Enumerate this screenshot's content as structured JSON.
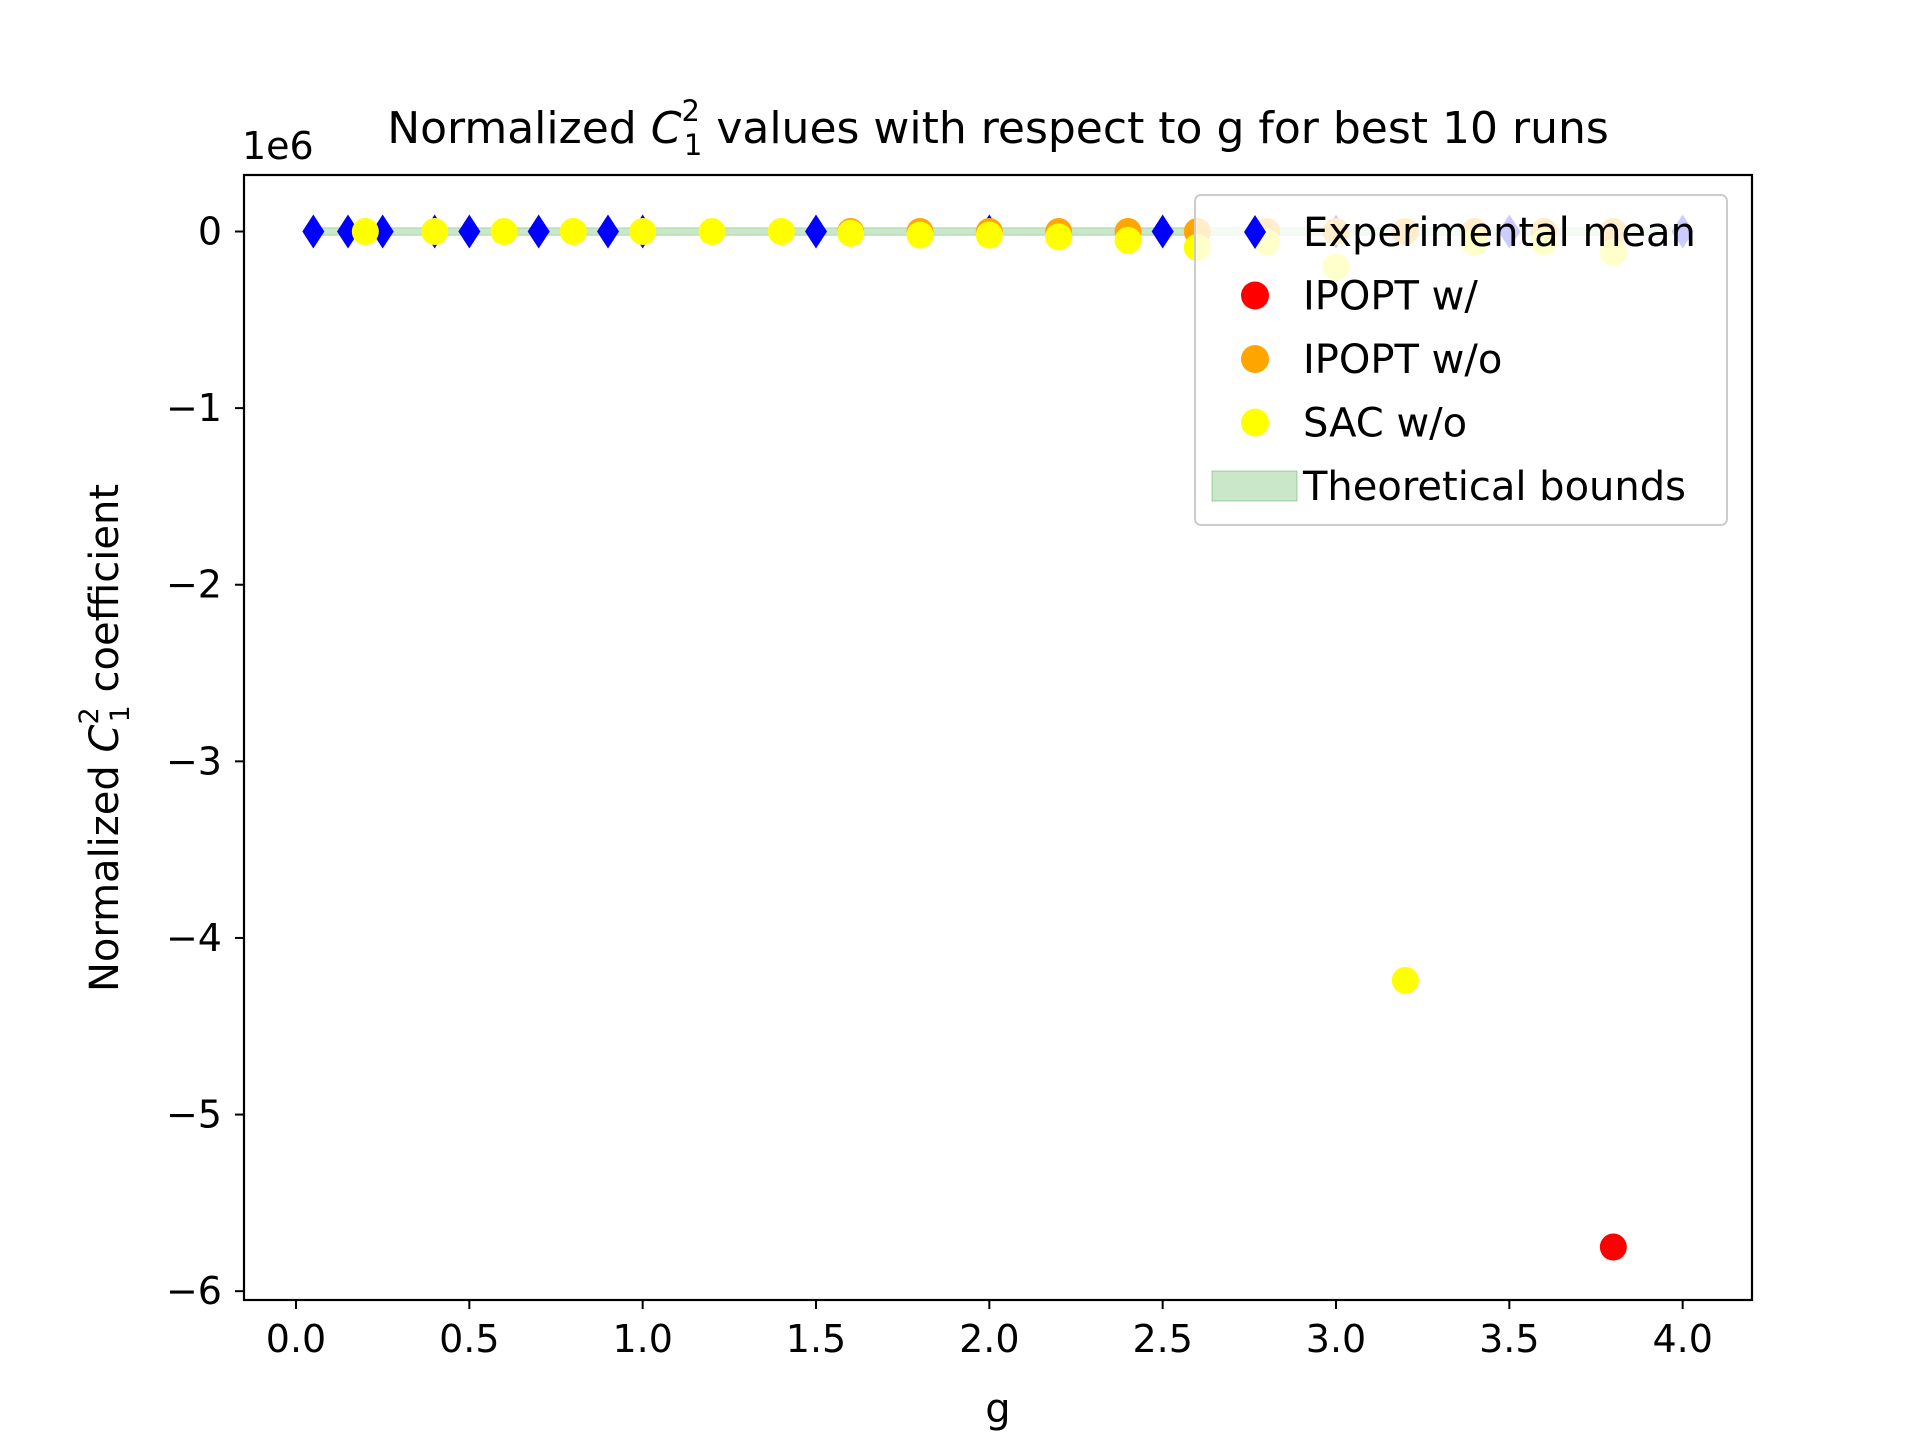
{
  "chart_data": {
    "type": "scatter",
    "title": {
      "prefix": "Normalized ",
      "symbol": "C",
      "sup": "2",
      "sub": "1",
      "suffix": " values with respect to g for best 10 runs"
    },
    "xlabel": "g",
    "ylabel": {
      "prefix": "Normalized ",
      "symbol": "C",
      "sup": "2",
      "sub": "1",
      "suffix": " coefficient"
    },
    "y_offset_label": "1e6",
    "xlim": [
      -0.15,
      4.2
    ],
    "ylim": [
      -6.05,
      0.32
    ],
    "x_ticks": [
      0.0,
      0.5,
      1.0,
      1.5,
      2.0,
      2.5,
      3.0,
      3.5,
      4.0
    ],
    "x_tick_labels": [
      "0.0",
      "0.5",
      "1.0",
      "1.5",
      "2.0",
      "2.5",
      "3.0",
      "3.5",
      "4.0"
    ],
    "y_ticks": [
      0,
      -1,
      -2,
      -3,
      -4,
      -5,
      -6
    ],
    "y_tick_labels": [
      "0",
      "−1",
      "−2",
      "−3",
      "−4",
      "−5",
      "−6"
    ],
    "grid": false,
    "legend_position": "top-right",
    "legend": [
      {
        "label": "Experimental mean",
        "color": "#0000ff",
        "marker": "diamond"
      },
      {
        "label": "IPOPT w/",
        "color": "#ff0000",
        "marker": "circle"
      },
      {
        "label": "IPOPT w/o",
        "color": "#ffa500",
        "marker": "circle"
      },
      {
        "label": "SAC w/o",
        "color": "#ffff00",
        "marker": "circle"
      },
      {
        "label": "Theoretical bounds",
        "color": "#2ca02c",
        "marker": "patch"
      }
    ],
    "bounds_band": {
      "color": "#2ca02c",
      "x": [
        0.05,
        4.0
      ],
      "y_low": [
        -0.004,
        -0.004
      ],
      "y_high": [
        0.004,
        0.004
      ]
    },
    "series": [
      {
        "name": "Experimental mean",
        "color": "#0000ff",
        "marker": "diamond",
        "x": [
          0.05,
          0.15,
          0.25,
          0.4,
          0.5,
          0.7,
          0.9,
          1.0,
          1.5,
          2.0,
          2.5,
          3.0,
          3.5,
          4.0
        ],
        "y": [
          0,
          0,
          0,
          0,
          0,
          0,
          0,
          0,
          0,
          0,
          0,
          0,
          0,
          0
        ]
      },
      {
        "name": "IPOPT w/",
        "color": "#ff0000",
        "marker": "circle",
        "x": [
          3.8
        ],
        "y": [
          -5.75
        ]
      },
      {
        "name": "IPOPT w/o",
        "color": "#ffa500",
        "marker": "circle",
        "x": [
          1.6,
          1.8,
          2.0,
          2.2,
          2.4,
          2.6,
          2.8,
          3.0,
          3.2,
          3.4,
          3.6,
          3.8
        ],
        "y": [
          0,
          0,
          0,
          0,
          0,
          0,
          0,
          0,
          0,
          0,
          0,
          0
        ]
      },
      {
        "name": "SAC w/o",
        "color": "#ffff00",
        "marker": "circle",
        "x": [
          0.2,
          0.4,
          0.6,
          0.8,
          1.0,
          1.2,
          1.4,
          1.6,
          1.8,
          2.0,
          2.2,
          2.4,
          2.6,
          2.8,
          3.0,
          3.2,
          3.4,
          3.6,
          3.8
        ],
        "y": [
          0,
          0,
          0,
          0,
          0,
          0,
          0,
          -0.01,
          -0.02,
          -0.02,
          -0.03,
          -0.05,
          -0.09,
          -0.06,
          -0.2,
          -4.24,
          -0.06,
          -0.06,
          -0.12
        ]
      }
    ]
  }
}
